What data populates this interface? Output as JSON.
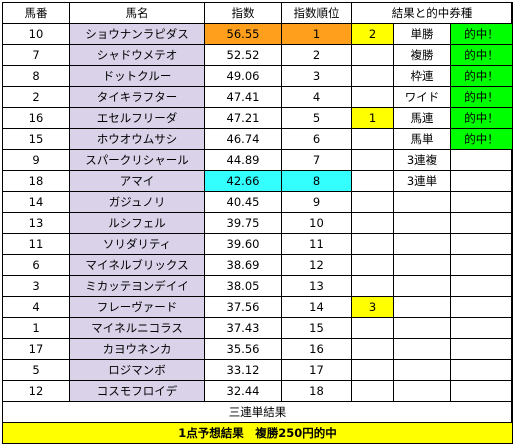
{
  "headers": {
    "umaban": "馬番",
    "bamei": "馬名",
    "shisu": "指数",
    "shisu_juni": "指数順位",
    "result": "結果と的中券種"
  },
  "rows": [
    {
      "umaban": "10",
      "name": "ショウナンラピダス",
      "index": "56.55",
      "rank": "1",
      "result": "2",
      "bet_type": "単勝",
      "hit": "的中！"
    },
    {
      "umaban": "7",
      "name": "シャドウメテオ",
      "index": "52.52",
      "rank": "2",
      "result": "",
      "bet_type": "複勝",
      "hit": "的中！"
    },
    {
      "umaban": "8",
      "name": "ドットクルー",
      "index": "49.06",
      "rank": "3",
      "result": "",
      "bet_type": "枠連",
      "hit": "的中！"
    },
    {
      "umaban": "2",
      "name": "タイキラフター",
      "index": "47.41",
      "rank": "4",
      "result": "",
      "bet_type": "ワイド",
      "hit": "的中！"
    },
    {
      "umaban": "16",
      "name": "エセルフリーダ",
      "index": "47.21",
      "rank": "5",
      "result": "1",
      "bet_type": "馬連",
      "hit": "的中！"
    },
    {
      "umaban": "15",
      "name": "ホウオウムサシ",
      "index": "46.74",
      "rank": "6",
      "result": "",
      "bet_type": "馬単",
      "hit": "的中！"
    },
    {
      "umaban": "9",
      "name": "スパークリシャール",
      "index": "44.89",
      "rank": "7",
      "result": "",
      "bet_type": "3連複",
      "hit": ""
    },
    {
      "umaban": "18",
      "name": "アマイ",
      "index": "42.66",
      "rank": "8",
      "result": "",
      "bet_type": "3連単",
      "hit": ""
    },
    {
      "umaban": "14",
      "name": "ガジュノリ",
      "index": "40.45",
      "rank": "9",
      "result": "",
      "bet_type": "",
      "hit": ""
    },
    {
      "umaban": "13",
      "name": "ルシフェル",
      "index": "39.75",
      "rank": "10",
      "result": "",
      "bet_type": "",
      "hit": ""
    },
    {
      "umaban": "11",
      "name": "ソリダリティ",
      "index": "39.60",
      "rank": "11",
      "result": "",
      "bet_type": "",
      "hit": ""
    },
    {
      "umaban": "6",
      "name": "マイネルブリックス",
      "index": "38.69",
      "rank": "12",
      "result": "",
      "bet_type": "",
      "hit": ""
    },
    {
      "umaban": "3",
      "name": "ミカッテヨンデイイ",
      "index": "38.05",
      "rank": "13",
      "result": "",
      "bet_type": "",
      "hit": ""
    },
    {
      "umaban": "4",
      "name": "フレーヴァード",
      "index": "37.56",
      "rank": "14",
      "result": "3",
      "bet_type": "",
      "hit": ""
    },
    {
      "umaban": "1",
      "name": "マイネルニコラス",
      "index": "37.43",
      "rank": "15",
      "result": "",
      "bet_type": "",
      "hit": ""
    },
    {
      "umaban": "17",
      "name": "カヨウネンカ",
      "index": "35.56",
      "rank": "16",
      "result": "",
      "bet_type": "",
      "hit": ""
    },
    {
      "umaban": "5",
      "name": "ロジマンボ",
      "index": "33.12",
      "rank": "17",
      "result": "",
      "bet_type": "",
      "hit": ""
    },
    {
      "umaban": "12",
      "name": "コスモフロイデ",
      "index": "32.44",
      "rank": "18",
      "result": "",
      "bet_type": "",
      "hit": ""
    }
  ],
  "footer": {
    "sanrentan_label": "三連単結果",
    "summary": "1点予想結果　複勝250円的中"
  },
  "colors": {
    "name_bg": "#d9d2e9",
    "top_index": "#ff9f1c",
    "eighth_index": "#33ffff",
    "result_marker": "#ffff00",
    "hit": "#00ff00",
    "summary_bg": "#ffff00"
  }
}
